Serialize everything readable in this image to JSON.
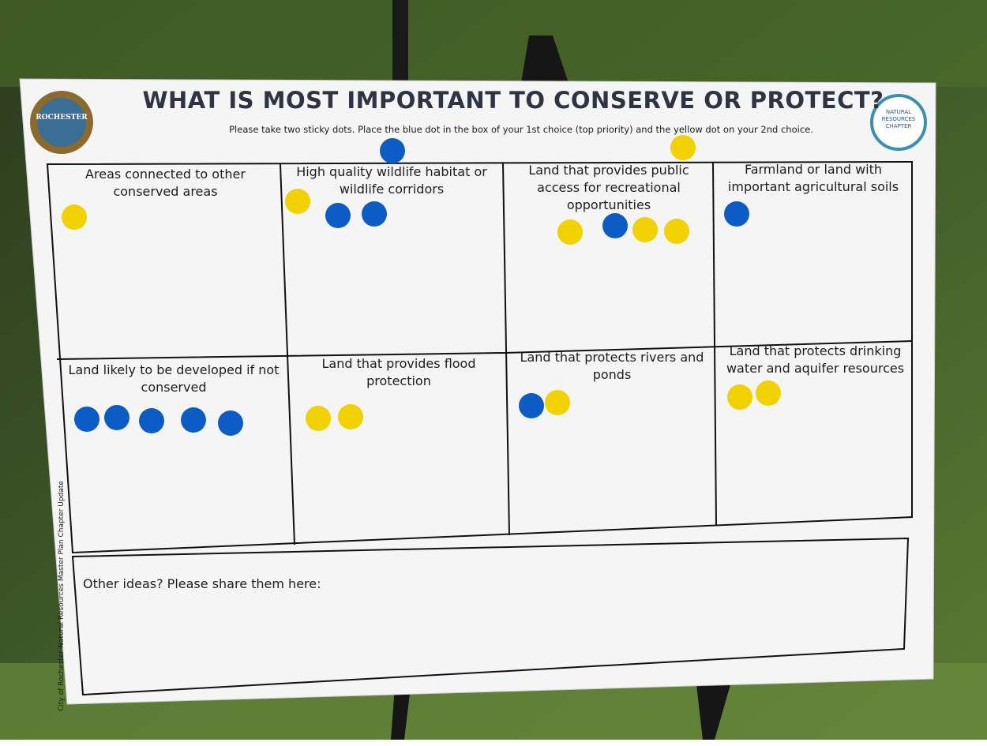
{
  "header": {
    "title": "WHAT IS MOST IMPORTANT TO CONSERVE OR PROTECT?",
    "instructions": "Please take two sticky dots. Place the blue dot in the box of your 1st choice (top priority) and the yellow dot on your 2nd choice.",
    "left_logo": "ROCHESTER",
    "right_logo": "NATURAL RESOURCES CHAPTER"
  },
  "grid": {
    "cells": [
      "Areas connected to other conserved areas",
      "High quality wildlife habitat or wildlife corridors",
      "Land that provides public access for recreational opportunities",
      "Farmland or land with important agricultural soils",
      "Land likely to be developed if not conserved",
      "Land that provides flood protection",
      "Land that protects rivers and ponds",
      "Land that protects drinking water and aquifer resources"
    ]
  },
  "footer": {
    "other_ideas": "Other ideas? Please share them here:",
    "side_note": "City of Rochester Natural Resources Master Plan Chapter Update"
  }
}
